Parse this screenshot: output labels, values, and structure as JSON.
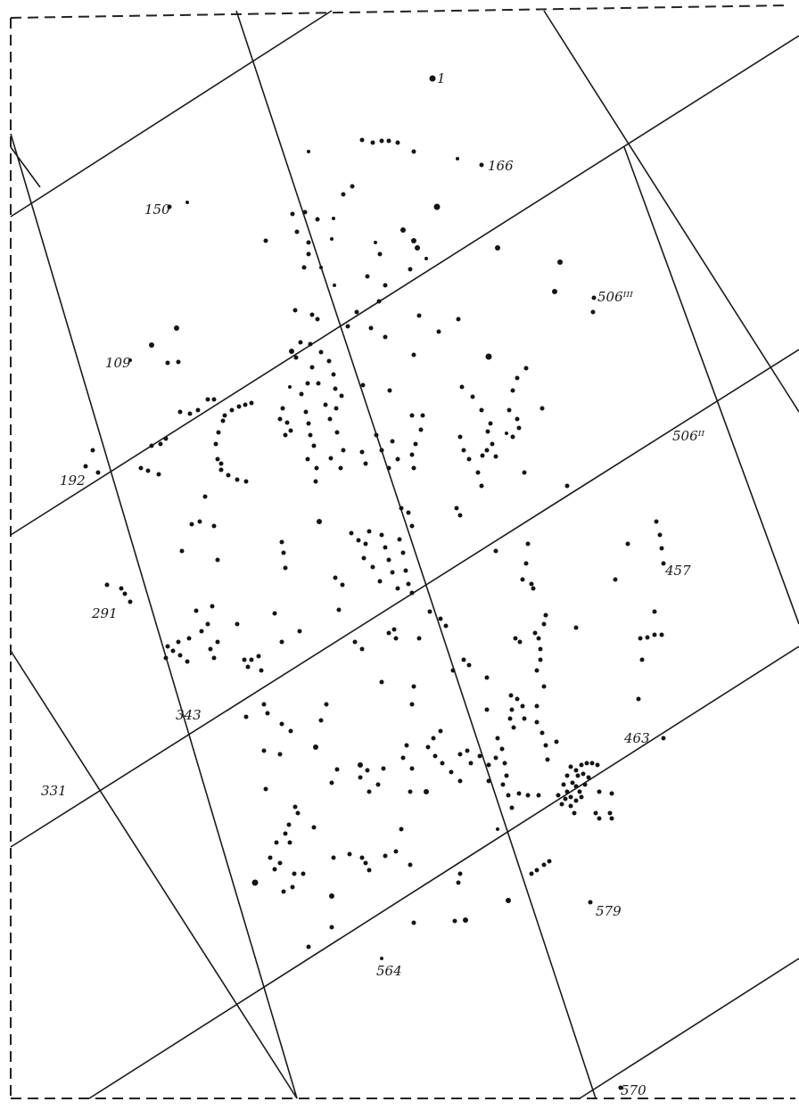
{
  "colors": {
    "paper": "#ffffff",
    "ink": "#141414",
    "border": "#222222"
  },
  "border_style": "dashed",
  "labels": [
    {
      "id": "1",
      "text": "1"
    },
    {
      "id": "166",
      "text": "166"
    },
    {
      "id": "150",
      "text": "150"
    },
    {
      "id": "506III",
      "text": "506ᴵᴵᴵ"
    },
    {
      "id": "109",
      "text": "109"
    },
    {
      "id": "506II",
      "text": "506ᴵᴵ"
    },
    {
      "id": "192",
      "text": "192"
    },
    {
      "id": "457",
      "text": "457"
    },
    {
      "id": "291",
      "text": "291"
    },
    {
      "id": "343",
      "text": "343"
    },
    {
      "id": "463",
      "text": "463"
    },
    {
      "id": "331",
      "text": "331"
    },
    {
      "id": "579",
      "text": "579"
    },
    {
      "id": "564",
      "text": "564"
    },
    {
      "id": "570",
      "text": "570"
    }
  ]
}
